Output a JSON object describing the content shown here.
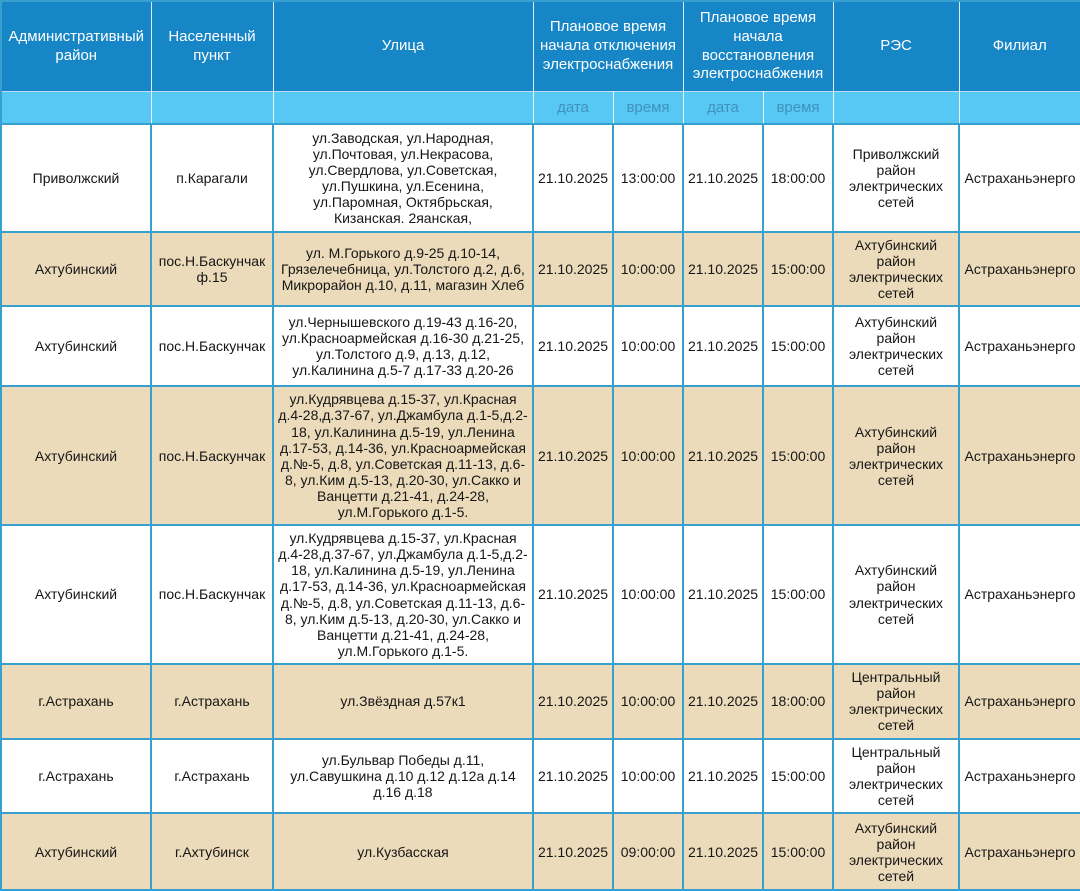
{
  "table": {
    "columns": [
      {
        "label": "Административный район"
      },
      {
        "label": "Населенный пункт"
      },
      {
        "label": "Улица"
      },
      {
        "label": "Плановое время начала отключения электроснабжения"
      },
      {
        "label": "Плановое время начала восстановления электроснабжения"
      },
      {
        "label": "РЭС"
      },
      {
        "label": "Филиал"
      }
    ],
    "subheaders": [
      "дата",
      "время",
      "дата",
      "время"
    ],
    "rows": [
      [
        "Приволжский",
        "п.Карагали",
        "ул.Заводская, ул.Народная, ул.Почтовая, ул.Некрасова, ул.Свердлова, ул.Советская, ул.Пушкина, ул.Есенина, ул.Паромная, Октябрьская, Кизанская. 2яанская,",
        "21.10.2025",
        "13:00:00",
        "21.10.2025",
        "18:00:00",
        "Приволжский район электрических сетей",
        "Астраханьэнерго"
      ],
      [
        "Ахтубинский",
        "пос.Н.Баскунчак ф.15",
        "ул. М.Горького д.9-25 д.10-14, Грязелечебница, ул.Толстого д.2, д.6, Микрорайон д.10, д.11, магазин Хлеб",
        "21.10.2025",
        "10:00:00",
        "21.10.2025",
        "15:00:00",
        "Ахтубинский район электрических сетей",
        "Астраханьэнерго"
      ],
      [
        "Ахтубинский",
        "пос.Н.Баскунчак",
        "ул.Чернышевского д.19-43 д.16-20, ул.Красноармейская д.16-30 д.21-25, ул.Толстого д.9, д.13, д.12, ул.Калинина д.5-7 д.17-33 д.20-26",
        "21.10.2025",
        "10:00:00",
        "21.10.2025",
        "15:00:00",
        "Ахтубинский район электрических сетей",
        "Астраханьэнерго"
      ],
      [
        "Ахтубинский",
        "пос.Н.Баскунчак",
        "ул.Кудрявцева д.15-37, ул.Красная д.4-28,д.37-67, ул.Джамбула д.1-5,д.2-18, ул.Калинина д.5-19, ул.Ленина д.17-53, д.14-36, ул.Красноармейская д.№-5, д.8, ул.Советская д.11-13, д.6-8, ул.Ким д.5-13, д.20-30, ул.Сакко и Ванцетти д.21-41, д.24-28, ул.М.Горького д.1-5.",
        "21.10.2025",
        "10:00:00",
        "21.10.2025",
        "15:00:00",
        "Ахтубинский район электрических сетей",
        "Астраханьэнерго"
      ],
      [
        "Ахтубинский",
        "пос.Н.Баскунчак",
        "ул.Кудрявцева д.15-37, ул.Красная д.4-28,д.37-67, ул.Джамбула д.1-5,д.2-18, ул.Калинина д.5-19, ул.Ленина д.17-53, д.14-36, ул.Красноармейская д.№-5, д.8, ул.Советская д.11-13, д.6-8, ул.Ким д.5-13, д.20-30, ул.Сакко и Ванцетти д.21-41, д.24-28, ул.М.Горького д.1-5.",
        "21.10.2025",
        "10:00:00",
        "21.10.2025",
        "15:00:00",
        "Ахтубинский район электрических сетей",
        "Астраханьэнерго"
      ],
      [
        "г.Астрахань",
        "г.Астрахань",
        "ул.Звёздная д.57к1",
        "21.10.2025",
        "10:00:00",
        "21.10.2025",
        "18:00:00",
        "Центральный район электрических сетей",
        "Астраханьэнерго"
      ],
      [
        "г.Астрахань",
        "г.Астрахань",
        "ул.Бульвар Победы д.11, ул.Савушкина д.10 д.12 д.12а д.14 д.16 д.18",
        "21.10.2025",
        "10:00:00",
        "21.10.2025",
        "15:00:00",
        "Центральный район электрических сетей",
        "Астраханьэнерго"
      ],
      [
        "Ахтубинский",
        "г.Ахтубинск",
        "ул.Кузбасская",
        "21.10.2025",
        "09:00:00",
        "21.10.2025",
        "15:00:00",
        "Ахтубинский район электрических сетей",
        "Астраханьэнерго"
      ]
    ]
  },
  "colors": {
    "header_bg": "#1786c7",
    "subheader_bg": "#57c7f3",
    "subheader_text": "#4193be",
    "row_alt_bg": "#ebdbba",
    "row_bg": "#ffffff",
    "border": "#38a0cf",
    "header_text": "#ffffff",
    "body_text": "#161616"
  }
}
